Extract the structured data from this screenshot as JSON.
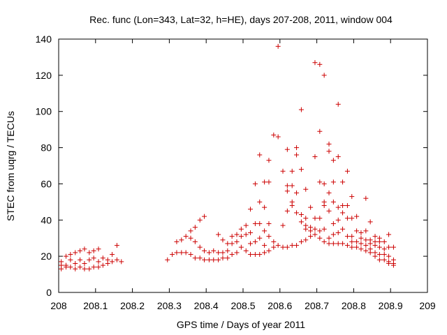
{
  "chart_data": {
    "type": "scatter",
    "title": "Rec. func (Lon=343, Lat=32, h=HE), days 207-208, 2011, window 004",
    "xlabel": "GPS time / Days of year 2011",
    "ylabel": "STEC from uqrg / TECUs",
    "xlim": [
      208,
      209
    ],
    "ylim": [
      0,
      140
    ],
    "xticks": [
      208,
      208.1,
      208.2,
      208.3,
      208.4,
      208.5,
      208.6,
      208.7,
      208.8,
      208.9,
      209
    ],
    "xtick_labels": [
      "208",
      "208.1",
      "208.2",
      "208.3",
      "208.4",
      "208.5",
      "208.6",
      "208.7",
      "208.8",
      "208.9",
      "209"
    ],
    "yticks": [
      0,
      20,
      40,
      60,
      80,
      100,
      120,
      140
    ],
    "ytick_labels": [
      "0",
      "20",
      "40",
      "60",
      "80",
      "100",
      "120",
      "140"
    ],
    "grid": false,
    "marker": "+",
    "color": "#cc0000",
    "series": [
      {
        "name": "STEC",
        "points": [
          [
            208.007,
            17
          ],
          [
            208.007,
            15
          ],
          [
            208.007,
            13
          ],
          [
            208.02,
            20
          ],
          [
            208.02,
            15
          ],
          [
            208.02,
            14
          ],
          [
            208.032,
            21
          ],
          [
            208.032,
            18
          ],
          [
            208.032,
            14
          ],
          [
            208.045,
            22
          ],
          [
            208.045,
            16
          ],
          [
            208.045,
            13
          ],
          [
            208.058,
            23
          ],
          [
            208.058,
            18
          ],
          [
            208.058,
            14
          ],
          [
            208.07,
            24
          ],
          [
            208.07,
            16
          ],
          [
            208.07,
            13
          ],
          [
            208.083,
            22
          ],
          [
            208.083,
            18
          ],
          [
            208.083,
            13
          ],
          [
            208.095,
            23
          ],
          [
            208.095,
            19
          ],
          [
            208.095,
            14
          ],
          [
            208.108,
            24
          ],
          [
            208.108,
            17
          ],
          [
            208.108,
            14
          ],
          [
            208.12,
            19
          ],
          [
            208.12,
            15
          ],
          [
            208.133,
            18
          ],
          [
            208.133,
            16
          ],
          [
            208.145,
            21
          ],
          [
            208.145,
            17
          ],
          [
            208.158,
            26
          ],
          [
            208.158,
            18
          ],
          [
            208.17,
            17
          ],
          [
            208.295,
            18
          ],
          [
            208.308,
            21
          ],
          [
            208.32,
            22
          ],
          [
            208.32,
            28
          ],
          [
            208.333,
            22
          ],
          [
            208.333,
            29
          ],
          [
            208.345,
            22
          ],
          [
            208.345,
            31
          ],
          [
            208.358,
            21
          ],
          [
            208.358,
            34
          ],
          [
            208.358,
            30
          ],
          [
            208.37,
            19
          ],
          [
            208.37,
            36
          ],
          [
            208.37,
            28
          ],
          [
            208.383,
            40
          ],
          [
            208.383,
            25
          ],
          [
            208.383,
            19
          ],
          [
            208.395,
            42
          ],
          [
            208.395,
            23
          ],
          [
            208.395,
            18
          ],
          [
            208.408,
            22
          ],
          [
            208.408,
            18
          ],
          [
            208.42,
            23
          ],
          [
            208.42,
            18
          ],
          [
            208.433,
            32
          ],
          [
            208.433,
            22
          ],
          [
            208.433,
            18
          ],
          [
            208.445,
            29
          ],
          [
            208.445,
            22
          ],
          [
            208.445,
            19
          ],
          [
            208.458,
            27
          ],
          [
            208.458,
            23
          ],
          [
            208.458,
            19
          ],
          [
            208.47,
            31
          ],
          [
            208.47,
            27
          ],
          [
            208.47,
            21
          ],
          [
            208.483,
            32
          ],
          [
            208.483,
            28
          ],
          [
            208.483,
            22
          ],
          [
            208.495,
            35
          ],
          [
            208.495,
            31
          ],
          [
            208.495,
            25
          ],
          [
            208.508,
            37
          ],
          [
            208.508,
            32
          ],
          [
            208.508,
            23
          ],
          [
            208.52,
            46
          ],
          [
            208.52,
            33
          ],
          [
            208.52,
            27
          ],
          [
            208.52,
            21
          ],
          [
            208.533,
            60
          ],
          [
            208.533,
            38
          ],
          [
            208.533,
            28
          ],
          [
            208.533,
            21
          ],
          [
            208.545,
            76
          ],
          [
            208.545,
            50
          ],
          [
            208.545,
            38
          ],
          [
            208.545,
            30
          ],
          [
            208.545,
            21
          ],
          [
            208.558,
            61
          ],
          [
            208.558,
            47
          ],
          [
            208.558,
            34
          ],
          [
            208.558,
            26
          ],
          [
            208.558,
            22
          ],
          [
            208.57,
            73
          ],
          [
            208.57,
            61
          ],
          [
            208.57,
            38
          ],
          [
            208.57,
            31
          ],
          [
            208.57,
            23
          ],
          [
            208.583,
            87
          ],
          [
            208.583,
            28
          ],
          [
            208.583,
            25
          ],
          [
            208.595,
            136
          ],
          [
            208.595,
            86
          ],
          [
            208.595,
            26
          ],
          [
            208.608,
            67
          ],
          [
            208.608,
            37
          ],
          [
            208.608,
            25
          ],
          [
            208.62,
            79
          ],
          [
            208.62,
            59
          ],
          [
            208.62,
            56
          ],
          [
            208.62,
            45
          ],
          [
            208.62,
            25
          ],
          [
            208.633,
            67
          ],
          [
            208.633,
            59
          ],
          [
            208.633,
            50
          ],
          [
            208.633,
            48
          ],
          [
            208.633,
            26
          ],
          [
            208.645,
            80
          ],
          [
            208.645,
            76
          ],
          [
            208.645,
            55
          ],
          [
            208.645,
            44
          ],
          [
            208.645,
            26
          ],
          [
            208.658,
            101
          ],
          [
            208.658,
            68
          ],
          [
            208.658,
            43
          ],
          [
            208.658,
            39
          ],
          [
            208.658,
            28
          ],
          [
            208.67,
            57
          ],
          [
            208.67,
            41
          ],
          [
            208.67,
            37
          ],
          [
            208.67,
            35
          ],
          [
            208.67,
            29
          ],
          [
            208.683,
            47
          ],
          [
            208.683,
            36
          ],
          [
            208.683,
            34
          ],
          [
            208.683,
            31
          ],
          [
            208.695,
            127
          ],
          [
            208.695,
            75
          ],
          [
            208.695,
            41
          ],
          [
            208.695,
            35
          ],
          [
            208.695,
            32
          ],
          [
            208.708,
            126
          ],
          [
            208.708,
            89
          ],
          [
            208.708,
            61
          ],
          [
            208.708,
            41
          ],
          [
            208.708,
            34
          ],
          [
            208.708,
            30
          ],
          [
            208.72,
            120
          ],
          [
            208.72,
            60
          ],
          [
            208.72,
            50
          ],
          [
            208.72,
            48
          ],
          [
            208.72,
            35
          ],
          [
            208.72,
            28
          ],
          [
            208.733,
            82
          ],
          [
            208.733,
            78
          ],
          [
            208.733,
            55
          ],
          [
            208.733,
            45
          ],
          [
            208.733,
            30
          ],
          [
            208.733,
            27
          ],
          [
            208.745,
            73
          ],
          [
            208.745,
            61
          ],
          [
            208.745,
            50
          ],
          [
            208.745,
            38
          ],
          [
            208.745,
            32
          ],
          [
            208.745,
            27
          ],
          [
            208.758,
            104
          ],
          [
            208.758,
            75
          ],
          [
            208.758,
            47
          ],
          [
            208.758,
            40
          ],
          [
            208.758,
            33
          ],
          [
            208.758,
            27
          ],
          [
            208.77,
            61
          ],
          [
            208.77,
            48
          ],
          [
            208.77,
            44
          ],
          [
            208.77,
            35
          ],
          [
            208.77,
            27
          ],
          [
            208.783,
            67
          ],
          [
            208.783,
            48
          ],
          [
            208.783,
            41
          ],
          [
            208.783,
            31
          ],
          [
            208.783,
            26
          ],
          [
            208.795,
            53
          ],
          [
            208.795,
            41
          ],
          [
            208.795,
            31
          ],
          [
            208.795,
            28
          ],
          [
            208.795,
            25
          ],
          [
            208.808,
            42
          ],
          [
            208.808,
            34
          ],
          [
            208.808,
            28
          ],
          [
            208.808,
            25
          ],
          [
            208.82,
            33
          ],
          [
            208.82,
            30
          ],
          [
            208.82,
            27
          ],
          [
            208.82,
            24
          ],
          [
            208.833,
            52
          ],
          [
            208.833,
            34
          ],
          [
            208.833,
            29
          ],
          [
            208.833,
            26
          ],
          [
            208.833,
            23
          ],
          [
            208.845,
            39
          ],
          [
            208.845,
            29
          ],
          [
            208.845,
            27
          ],
          [
            208.845,
            24
          ],
          [
            208.845,
            22
          ],
          [
            208.858,
            31
          ],
          [
            208.858,
            28
          ],
          [
            208.858,
            26
          ],
          [
            208.858,
            22
          ],
          [
            208.858,
            20
          ],
          [
            208.87,
            30
          ],
          [
            208.87,
            28
          ],
          [
            208.87,
            25
          ],
          [
            208.87,
            21
          ],
          [
            208.87,
            18
          ],
          [
            208.883,
            28
          ],
          [
            208.883,
            24
          ],
          [
            208.883,
            21
          ],
          [
            208.883,
            18
          ],
          [
            208.895,
            32
          ],
          [
            208.895,
            25
          ],
          [
            208.895,
            20
          ],
          [
            208.895,
            17
          ],
          [
            208.895,
            16
          ],
          [
            208.908,
            25
          ],
          [
            208.908,
            18
          ],
          [
            208.908,
            16
          ],
          [
            208.908,
            15
          ]
        ]
      }
    ]
  }
}
